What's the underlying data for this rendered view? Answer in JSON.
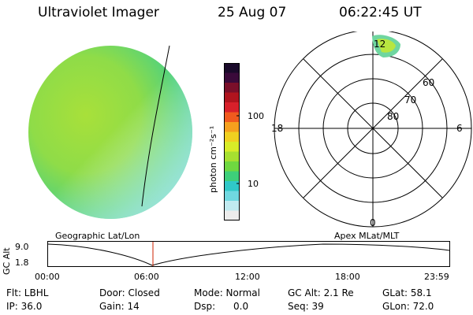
{
  "header": {
    "instrument": "Ultraviolet Imager",
    "date": "25 Aug 07",
    "time": "06:22:45 UT"
  },
  "colorbar": {
    "unit_label": "photon cm⁻²s⁻¹",
    "ticks": [
      "100",
      "10"
    ],
    "colors": [
      "#1a0a2a",
      "#3a0a3a",
      "#7a0f2a",
      "#b0141e",
      "#d8202a",
      "#f05a1e",
      "#f5a01e",
      "#f0d020",
      "#d8ec28",
      "#a6e030",
      "#6fd840",
      "#3ecf7a",
      "#30c8c8",
      "#70d8e0",
      "#c0eaf0",
      "#ececec"
    ]
  },
  "polar": {
    "mlt_labels": {
      "top": "12",
      "left": "18",
      "right": "6",
      "bottom": "0"
    },
    "lat_labels": [
      "60",
      "70",
      "80"
    ]
  },
  "timeline": {
    "left_header": "Geographic Lat/Lon",
    "right_header": "Apex MLat/MLT",
    "axis_label": "GC Alt",
    "y_ticks": [
      "9.0",
      "1.8"
    ],
    "x_ticks": [
      "00:00",
      "06:00",
      "12:00",
      "18:00",
      "23:59"
    ]
  },
  "footer": {
    "filter": "Flt: LBHL",
    "door": "Door: Closed",
    "mode": "Mode: Normal",
    "gc_alt": "GC Alt: 2.1 Re",
    "glat": "GLat:  58.1",
    "ip": "IP:  36.0",
    "gain": "Gain: 14",
    "dsp": "Dsp:      0.0",
    "seq": "Seq: 39",
    "glon": "GLon:  72.0"
  }
}
